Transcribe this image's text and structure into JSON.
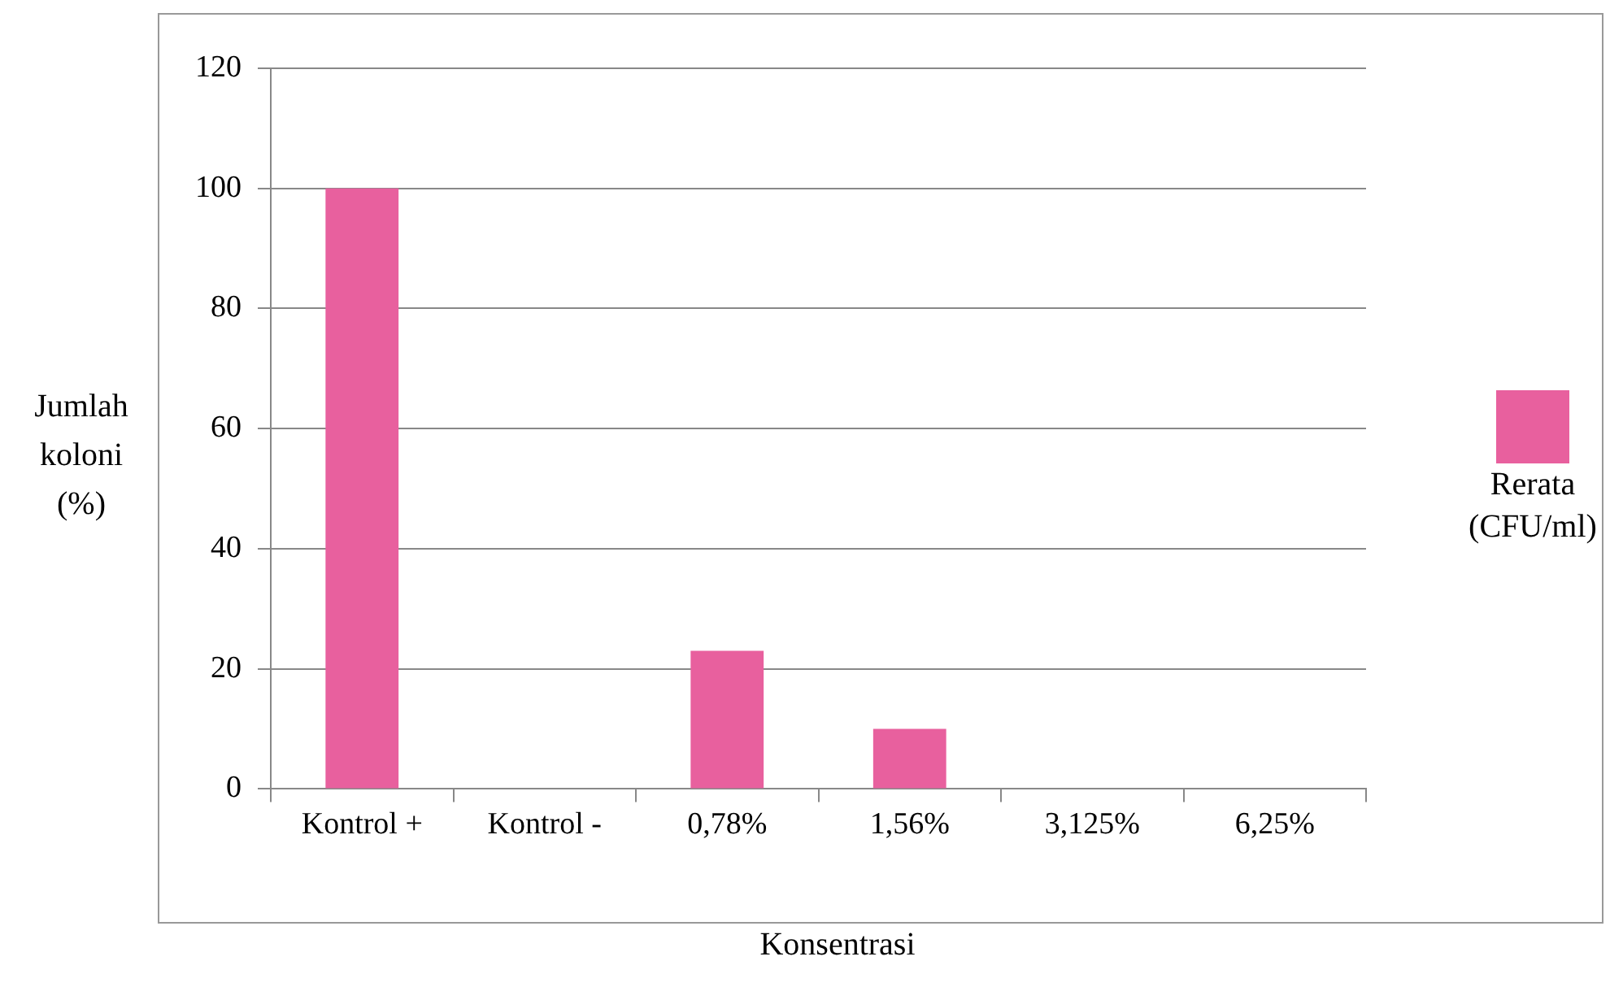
{
  "chart_data": {
    "type": "bar",
    "xlabel": "Konsentrasi",
    "ylabel": "Jumlah koloni (%)",
    "categories": [
      "Kontrol +",
      "Kontrol -",
      "0,78%",
      "1,56%",
      "3,125%",
      "6,25%"
    ],
    "series": [
      {
        "name": "Rerata (CFU/ml)",
        "color": "#e8609e",
        "values": [
          100,
          0,
          23,
          10,
          0,
          0
        ]
      }
    ],
    "ylim": [
      0,
      120
    ],
    "yticks": [
      0,
      20,
      40,
      60,
      80,
      100,
      120
    ],
    "grid": "y",
    "legend": "right"
  }
}
